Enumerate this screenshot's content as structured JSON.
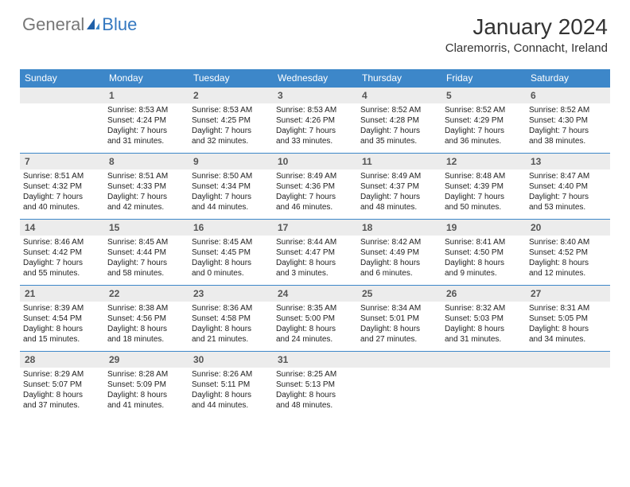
{
  "logo": {
    "part1": "General",
    "part2": "Blue"
  },
  "title": "January 2024",
  "location": "Claremorris, Connacht, Ireland",
  "colors": {
    "header_bg": "#3d87c9",
    "header_text": "#ffffff",
    "daynum_bg": "#ececec",
    "border": "#3d87c9",
    "text": "#222222"
  },
  "weekdays": [
    "Sunday",
    "Monday",
    "Tuesday",
    "Wednesday",
    "Thursday",
    "Friday",
    "Saturday"
  ],
  "weeks": [
    [
      {
        "n": "",
        "empty": true,
        "l1": "",
        "l2": "",
        "l3": "",
        "l4": ""
      },
      {
        "n": "1",
        "l1": "Sunrise: 8:53 AM",
        "l2": "Sunset: 4:24 PM",
        "l3": "Daylight: 7 hours",
        "l4": "and 31 minutes."
      },
      {
        "n": "2",
        "l1": "Sunrise: 8:53 AM",
        "l2": "Sunset: 4:25 PM",
        "l3": "Daylight: 7 hours",
        "l4": "and 32 minutes."
      },
      {
        "n": "3",
        "l1": "Sunrise: 8:53 AM",
        "l2": "Sunset: 4:26 PM",
        "l3": "Daylight: 7 hours",
        "l4": "and 33 minutes."
      },
      {
        "n": "4",
        "l1": "Sunrise: 8:52 AM",
        "l2": "Sunset: 4:28 PM",
        "l3": "Daylight: 7 hours",
        "l4": "and 35 minutes."
      },
      {
        "n": "5",
        "l1": "Sunrise: 8:52 AM",
        "l2": "Sunset: 4:29 PM",
        "l3": "Daylight: 7 hours",
        "l4": "and 36 minutes."
      },
      {
        "n": "6",
        "l1": "Sunrise: 8:52 AM",
        "l2": "Sunset: 4:30 PM",
        "l3": "Daylight: 7 hours",
        "l4": "and 38 minutes."
      }
    ],
    [
      {
        "n": "7",
        "l1": "Sunrise: 8:51 AM",
        "l2": "Sunset: 4:32 PM",
        "l3": "Daylight: 7 hours",
        "l4": "and 40 minutes."
      },
      {
        "n": "8",
        "l1": "Sunrise: 8:51 AM",
        "l2": "Sunset: 4:33 PM",
        "l3": "Daylight: 7 hours",
        "l4": "and 42 minutes."
      },
      {
        "n": "9",
        "l1": "Sunrise: 8:50 AM",
        "l2": "Sunset: 4:34 PM",
        "l3": "Daylight: 7 hours",
        "l4": "and 44 minutes."
      },
      {
        "n": "10",
        "l1": "Sunrise: 8:49 AM",
        "l2": "Sunset: 4:36 PM",
        "l3": "Daylight: 7 hours",
        "l4": "and 46 minutes."
      },
      {
        "n": "11",
        "l1": "Sunrise: 8:49 AM",
        "l2": "Sunset: 4:37 PM",
        "l3": "Daylight: 7 hours",
        "l4": "and 48 minutes."
      },
      {
        "n": "12",
        "l1": "Sunrise: 8:48 AM",
        "l2": "Sunset: 4:39 PM",
        "l3": "Daylight: 7 hours",
        "l4": "and 50 minutes."
      },
      {
        "n": "13",
        "l1": "Sunrise: 8:47 AM",
        "l2": "Sunset: 4:40 PM",
        "l3": "Daylight: 7 hours",
        "l4": "and 53 minutes."
      }
    ],
    [
      {
        "n": "14",
        "l1": "Sunrise: 8:46 AM",
        "l2": "Sunset: 4:42 PM",
        "l3": "Daylight: 7 hours",
        "l4": "and 55 minutes."
      },
      {
        "n": "15",
        "l1": "Sunrise: 8:45 AM",
        "l2": "Sunset: 4:44 PM",
        "l3": "Daylight: 7 hours",
        "l4": "and 58 minutes."
      },
      {
        "n": "16",
        "l1": "Sunrise: 8:45 AM",
        "l2": "Sunset: 4:45 PM",
        "l3": "Daylight: 8 hours",
        "l4": "and 0 minutes."
      },
      {
        "n": "17",
        "l1": "Sunrise: 8:44 AM",
        "l2": "Sunset: 4:47 PM",
        "l3": "Daylight: 8 hours",
        "l4": "and 3 minutes."
      },
      {
        "n": "18",
        "l1": "Sunrise: 8:42 AM",
        "l2": "Sunset: 4:49 PM",
        "l3": "Daylight: 8 hours",
        "l4": "and 6 minutes."
      },
      {
        "n": "19",
        "l1": "Sunrise: 8:41 AM",
        "l2": "Sunset: 4:50 PM",
        "l3": "Daylight: 8 hours",
        "l4": "and 9 minutes."
      },
      {
        "n": "20",
        "l1": "Sunrise: 8:40 AM",
        "l2": "Sunset: 4:52 PM",
        "l3": "Daylight: 8 hours",
        "l4": "and 12 minutes."
      }
    ],
    [
      {
        "n": "21",
        "l1": "Sunrise: 8:39 AM",
        "l2": "Sunset: 4:54 PM",
        "l3": "Daylight: 8 hours",
        "l4": "and 15 minutes."
      },
      {
        "n": "22",
        "l1": "Sunrise: 8:38 AM",
        "l2": "Sunset: 4:56 PM",
        "l3": "Daylight: 8 hours",
        "l4": "and 18 minutes."
      },
      {
        "n": "23",
        "l1": "Sunrise: 8:36 AM",
        "l2": "Sunset: 4:58 PM",
        "l3": "Daylight: 8 hours",
        "l4": "and 21 minutes."
      },
      {
        "n": "24",
        "l1": "Sunrise: 8:35 AM",
        "l2": "Sunset: 5:00 PM",
        "l3": "Daylight: 8 hours",
        "l4": "and 24 minutes."
      },
      {
        "n": "25",
        "l1": "Sunrise: 8:34 AM",
        "l2": "Sunset: 5:01 PM",
        "l3": "Daylight: 8 hours",
        "l4": "and 27 minutes."
      },
      {
        "n": "26",
        "l1": "Sunrise: 8:32 AM",
        "l2": "Sunset: 5:03 PM",
        "l3": "Daylight: 8 hours",
        "l4": "and 31 minutes."
      },
      {
        "n": "27",
        "l1": "Sunrise: 8:31 AM",
        "l2": "Sunset: 5:05 PM",
        "l3": "Daylight: 8 hours",
        "l4": "and 34 minutes."
      }
    ],
    [
      {
        "n": "28",
        "l1": "Sunrise: 8:29 AM",
        "l2": "Sunset: 5:07 PM",
        "l3": "Daylight: 8 hours",
        "l4": "and 37 minutes."
      },
      {
        "n": "29",
        "l1": "Sunrise: 8:28 AM",
        "l2": "Sunset: 5:09 PM",
        "l3": "Daylight: 8 hours",
        "l4": "and 41 minutes."
      },
      {
        "n": "30",
        "l1": "Sunrise: 8:26 AM",
        "l2": "Sunset: 5:11 PM",
        "l3": "Daylight: 8 hours",
        "l4": "and 44 minutes."
      },
      {
        "n": "31",
        "l1": "Sunrise: 8:25 AM",
        "l2": "Sunset: 5:13 PM",
        "l3": "Daylight: 8 hours",
        "l4": "and 48 minutes."
      },
      {
        "n": "",
        "empty": true,
        "l1": "",
        "l2": "",
        "l3": "",
        "l4": ""
      },
      {
        "n": "",
        "empty": true,
        "l1": "",
        "l2": "",
        "l3": "",
        "l4": ""
      },
      {
        "n": "",
        "empty": true,
        "l1": "",
        "l2": "",
        "l3": "",
        "l4": ""
      }
    ]
  ]
}
